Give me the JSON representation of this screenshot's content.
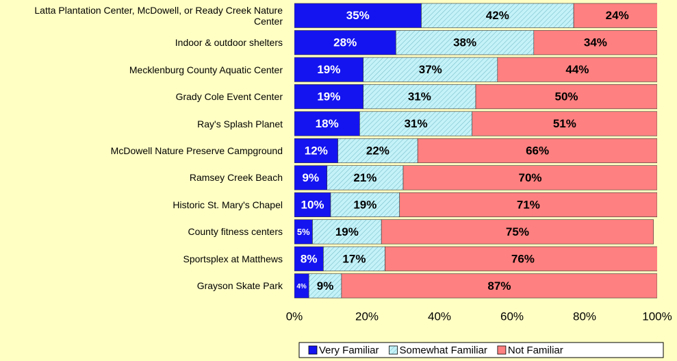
{
  "chart_data": {
    "type": "stacked_bar_horizontal",
    "categories": [
      "Latta Plantation Center, McDowell, or Ready Creek Nature Center",
      "Indoor & outdoor shelters",
      "Mecklenburg County Aquatic Center",
      "Grady Cole Event Center",
      "Ray's Splash Planet",
      "McDowell Nature Preserve Campground",
      "Ramsey Creek Beach",
      "Historic St. Mary's Chapel",
      "County fitness centers",
      "Sportsplex at Matthews",
      "Grayson Skate Park"
    ],
    "series": [
      {
        "name": "Very Familiar",
        "color": "#1414f0",
        "values": [
          35,
          28,
          19,
          19,
          18,
          12,
          9,
          10,
          5,
          8,
          4
        ],
        "value_labels": [
          "35%",
          "28%",
          "19%",
          "19%",
          "18%",
          "12%",
          "9%",
          "10%",
          "5%",
          "8%",
          "4%"
        ]
      },
      {
        "name": "Somewhat Familiar",
        "color": "#c4f2f8",
        "hatch": true,
        "values": [
          42,
          38,
          37,
          31,
          31,
          22,
          21,
          19,
          19,
          17,
          9
        ],
        "value_labels": [
          "42%",
          "38%",
          "37%",
          "31%",
          "31%",
          "22%",
          "21%",
          "19%",
          "19%",
          "17%",
          "9%"
        ]
      },
      {
        "name": "Not Familiar",
        "color": "#ff8080",
        "values": [
          24,
          34,
          44,
          50,
          51,
          66,
          70,
          71,
          75,
          76,
          87
        ],
        "value_labels": [
          "24%",
          "34%",
          "44%",
          "50%",
          "51%",
          "66%",
          "70%",
          "71%",
          "75%",
          "76%",
          "87%"
        ]
      }
    ],
    "xlim": [
      0,
      100
    ],
    "xticks": [
      {
        "value": 0,
        "label": "0%"
      },
      {
        "value": 20,
        "label": "20%"
      },
      {
        "value": 40,
        "label": "40%"
      },
      {
        "value": 60,
        "label": "60%"
      },
      {
        "value": 80,
        "label": "80%"
      },
      {
        "value": 100,
        "label": "100%"
      }
    ],
    "legend": "bottom-right"
  }
}
